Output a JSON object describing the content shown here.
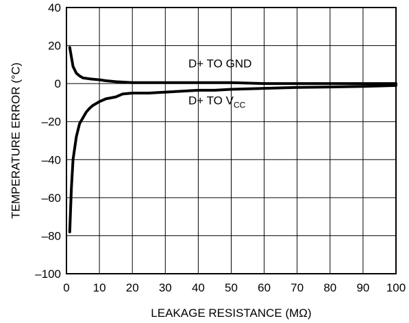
{
  "chart_data": {
    "type": "line",
    "title": "",
    "xlabel": "LEAKAGE RESISTANCE (MΩ)",
    "ylabel": "TEMPERATURE ERROR (°C)",
    "xlim": [
      0,
      100
    ],
    "ylim": [
      -100,
      40
    ],
    "x_ticks": [
      0,
      10,
      20,
      30,
      40,
      50,
      60,
      70,
      80,
      90,
      100
    ],
    "y_ticks": [
      40,
      20,
      0,
      -20,
      -40,
      -60,
      -80,
      -100
    ],
    "x_tick_labels": [
      "0",
      "10",
      "20",
      "30",
      "40",
      "50",
      "60",
      "70",
      "80",
      "90",
      "100"
    ],
    "y_tick_labels": [
      "40",
      "20",
      "0",
      "–20",
      "–40",
      "–60",
      "–80",
      "–100"
    ],
    "grid": true,
    "legend": "none",
    "series": [
      {
        "name": "D+ TO GND",
        "x": [
          1,
          1.5,
          2,
          3,
          4,
          5,
          7,
          10,
          12,
          15,
          20,
          30,
          40,
          50,
          60,
          70,
          80,
          90,
          100
        ],
        "y": [
          19,
          14,
          9,
          5.5,
          4,
          3,
          2.5,
          2,
          1.5,
          1,
          0.5,
          0.5,
          0.5,
          0.5,
          0,
          0,
          0,
          0,
          0
        ]
      },
      {
        "name": "D+ TO V_CC",
        "x": [
          1,
          1.5,
          2,
          3,
          4,
          5,
          6,
          7,
          8,
          10,
          12,
          15,
          17,
          20,
          25,
          30,
          35,
          40,
          45,
          50,
          60,
          70,
          80,
          90,
          100
        ],
        "y": [
          -78,
          -55,
          -40,
          -28,
          -21,
          -18,
          -15,
          -13,
          -11.5,
          -9.5,
          -8,
          -7,
          -5.5,
          -5,
          -5,
          -4.5,
          -4,
          -3.5,
          -3.5,
          -3,
          -2.5,
          -2,
          -1.8,
          -1.5,
          -1
        ]
      }
    ],
    "annotations": [
      {
        "text": "D+ TO GND",
        "series": 0
      },
      {
        "text": "D+ TO V",
        "subscript": "CC",
        "series": 1
      }
    ]
  }
}
